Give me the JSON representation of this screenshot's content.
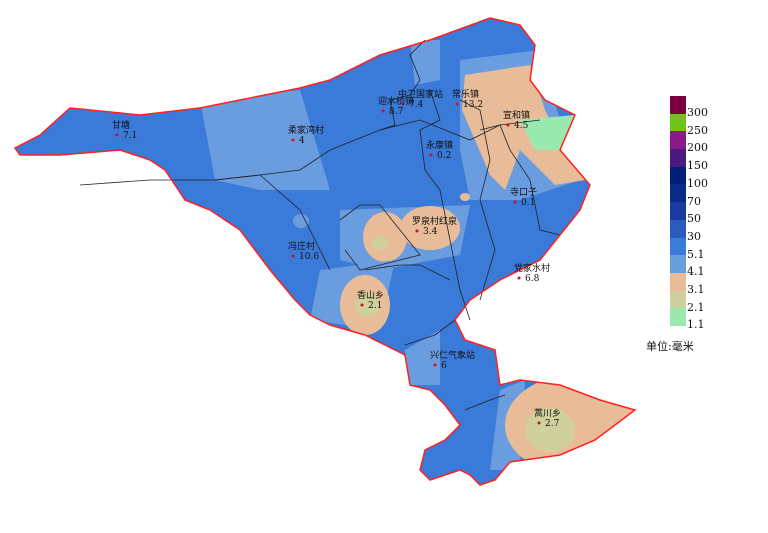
{
  "legend": {
    "unit_label": "单位:毫米",
    "classes": [
      {
        "color": "#7a0040",
        "label": "300"
      },
      {
        "color": "#6cc418",
        "label": "250"
      },
      {
        "color": "#8a1a8a",
        "label": "200"
      },
      {
        "color": "#4a1a80",
        "label": "150"
      },
      {
        "color": "#001f78",
        "label": "100"
      },
      {
        "color": "#0a2a8a",
        "label": "70"
      },
      {
        "color": "#1a3ca0",
        "label": "50"
      },
      {
        "color": "#2a5cc0",
        "label": "30"
      },
      {
        "color": "#3a7ad8",
        "label": "5.1"
      },
      {
        "color": "#6a9ce0",
        "label": "4.1"
      },
      {
        "color": "#e8bc98",
        "label": "3.1"
      },
      {
        "color": "#d0d09c",
        "label": "2.1"
      },
      {
        "color": "#98e8b0",
        "label": "1.1"
      }
    ]
  },
  "colors": {
    "boundary": "#ff2020",
    "inner_border": "#222222",
    "station_dot": "#d01020"
  },
  "stations": [
    {
      "name": "甘塘",
      "value": "7.1"
    },
    {
      "name": "柔家湾村",
      "value": "4"
    },
    {
      "name": "中卫国家站",
      "value": "7.4"
    },
    {
      "name": "迎水桥镇",
      "value": "8.7"
    },
    {
      "name": "常乐镇",
      "value": "13.2"
    },
    {
      "name": "宣和镇",
      "value": "4.5"
    },
    {
      "name": "永康镇",
      "value": "0.2"
    },
    {
      "name": "寺口子",
      "value": "0.1"
    },
    {
      "name": "罗泉村红泉",
      "value": "3.4"
    },
    {
      "name": "冯庄村",
      "value": "10.6"
    },
    {
      "name": "党家水村",
      "value": "6.8"
    },
    {
      "name": "香山乡",
      "value": "2.1"
    },
    {
      "name": "兴仁气象站",
      "value": "6"
    },
    {
      "name": "蒿川乡",
      "value": "2.7"
    }
  ]
}
